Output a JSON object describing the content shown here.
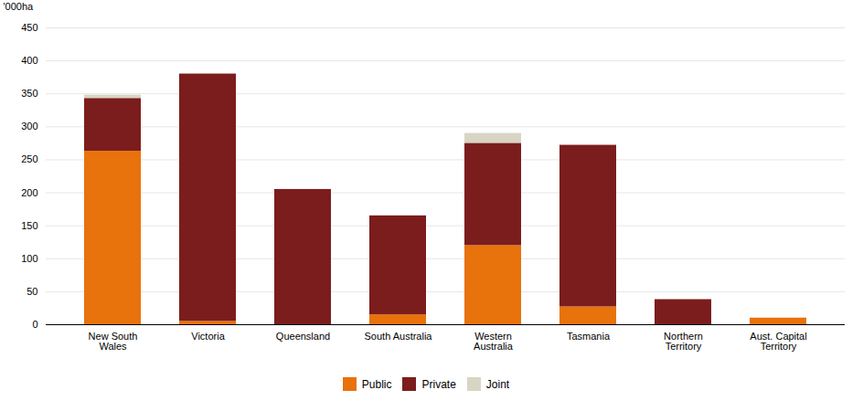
{
  "chart_data": {
    "type": "bar",
    "stacked": true,
    "categories": [
      "New South\nWales",
      "Victoria",
      "Queensland",
      "South Australia",
      "Western\nAustralia",
      "Tasmania",
      "Northern\nTerritory",
      "Aust. Capital\nTerritory"
    ],
    "series": [
      {
        "name": "Public",
        "color": "#E8720C",
        "values": [
          263,
          5,
          0,
          15,
          120,
          27,
          0,
          10
        ]
      },
      {
        "name": "Private",
        "color": "#7B1D1D",
        "values": [
          80,
          375,
          205,
          150,
          155,
          245,
          38,
          0
        ]
      },
      {
        "name": "Joint",
        "color": "#D9D5C5",
        "values": [
          5,
          0,
          0,
          0,
          15,
          0,
          0,
          0
        ]
      }
    ],
    "ylabel": "'000ha",
    "ylim": [
      0,
      450
    ],
    "yticks": [
      0,
      50,
      100,
      150,
      200,
      250,
      300,
      350,
      400,
      450
    ],
    "grid": true,
    "legend": "bottom"
  }
}
